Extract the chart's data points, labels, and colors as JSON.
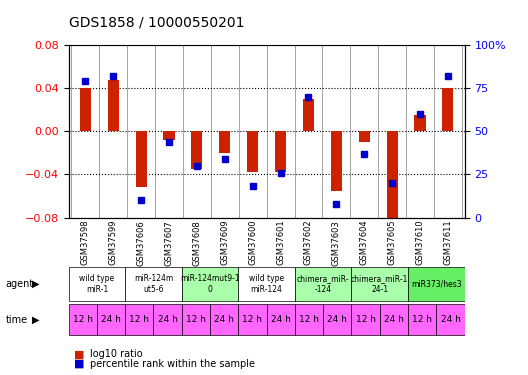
{
  "title": "GDS1858 / 10000550201",
  "samples": [
    "GSM37598",
    "GSM37599",
    "GSM37606",
    "GSM37607",
    "GSM37608",
    "GSM37609",
    "GSM37600",
    "GSM37601",
    "GSM37602",
    "GSM37603",
    "GSM37604",
    "GSM37605",
    "GSM37610",
    "GSM37611"
  ],
  "log10_ratio": [
    0.04,
    0.048,
    -0.052,
    -0.008,
    -0.035,
    -0.02,
    -0.038,
    -0.038,
    0.03,
    -0.055,
    -0.01,
    -0.082,
    0.015,
    0.04
  ],
  "percentile_rank": [
    79,
    82,
    10,
    44,
    30,
    34,
    18,
    26,
    70,
    8,
    37,
    20,
    60,
    82
  ],
  "ylim_left": [
    -0.08,
    0.08
  ],
  "ylim_right": [
    0,
    100
  ],
  "yticks_left": [
    -0.08,
    -0.04,
    0,
    0.04,
    0.08
  ],
  "yticks_right": [
    0,
    25,
    50,
    75,
    100
  ],
  "bar_color": "#cc2200",
  "dot_color": "#0000cc",
  "background_color": "#ffffff",
  "agent_groups": [
    {
      "label": "wild type\nmiR-1",
      "cols": [
        0,
        1
      ],
      "color": "#ffffff"
    },
    {
      "label": "miR-124m\nut5-6",
      "cols": [
        2,
        3
      ],
      "color": "#ffffff"
    },
    {
      "label": "miR-124mut9-1\n0",
      "cols": [
        4,
        5
      ],
      "color": "#aaffaa"
    },
    {
      "label": "wild type\nmiR-124",
      "cols": [
        6,
        7
      ],
      "color": "#ffffff"
    },
    {
      "label": "chimera_miR-\n-124",
      "cols": [
        8,
        9
      ],
      "color": "#aaffaa"
    },
    {
      "label": "chimera_miR-1\n24-1",
      "cols": [
        10,
        11
      ],
      "color": "#aaffaa"
    },
    {
      "label": "miR373/hes3",
      "cols": [
        12,
        13
      ],
      "color": "#66ee66"
    }
  ],
  "time_labels": [
    "12 h",
    "24 h",
    "12 h",
    "24 h",
    "12 h",
    "24 h",
    "12 h",
    "24 h",
    "12 h",
    "24 h",
    "12 h",
    "24 h",
    "12 h",
    "24 h"
  ],
  "time_color": "#ff66ff",
  "legend_bar_color": "#cc2200",
  "legend_dot_color": "#0000cc"
}
